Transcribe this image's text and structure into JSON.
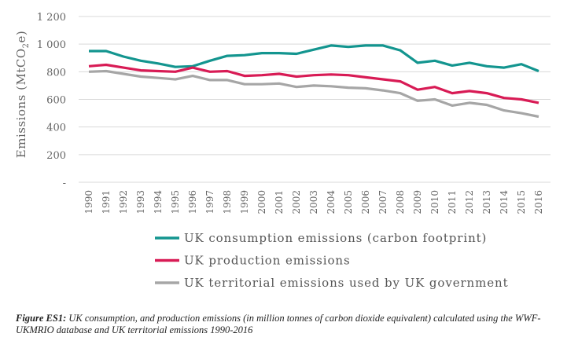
{
  "chart_data": {
    "type": "line",
    "title": "",
    "xlabel": "",
    "ylabel": "Emissions (MtCO2e)",
    "ylabel_parts": {
      "main": "Emissions (MtCO",
      "sub": "2",
      "tail": "e)"
    },
    "ylim": [
      0,
      1200
    ],
    "yticks": [
      0,
      200,
      400,
      600,
      800,
      1000,
      1200
    ],
    "ytick_labels": [
      "-",
      "200",
      "400",
      "600",
      "800",
      "1 000",
      "1 200"
    ],
    "grid": true,
    "legend_placement": "bottom",
    "x": [
      "1990",
      "1991",
      "1992",
      "1993",
      "1994",
      "1995",
      "1996",
      "1997",
      "1998",
      "1999",
      "2000",
      "2001",
      "2002",
      "2003",
      "2004",
      "2005",
      "2006",
      "2007",
      "2008",
      "2009",
      "2010",
      "2011",
      "2012",
      "2013",
      "2014",
      "2015",
      "2016"
    ],
    "series": [
      {
        "name": "UK consumption emissions (carbon footprint)",
        "color": "#13958f",
        "values": [
          950,
          950,
          910,
          880,
          860,
          835,
          840,
          880,
          915,
          920,
          935,
          935,
          930,
          960,
          990,
          980,
          990,
          990,
          955,
          865,
          880,
          845,
          865,
          840,
          830,
          855,
          805
        ]
      },
      {
        "name": "UK production emissions",
        "color": "#d81b55",
        "values": [
          840,
          850,
          830,
          810,
          805,
          800,
          830,
          800,
          805,
          770,
          775,
          785,
          765,
          775,
          780,
          775,
          760,
          745,
          730,
          670,
          690,
          645,
          660,
          645,
          610,
          600,
          575
        ]
      },
      {
        "name": "UK territorial emissions used by UK government",
        "color": "#a6a6a6",
        "values": [
          800,
          805,
          785,
          765,
          755,
          745,
          770,
          740,
          740,
          710,
          710,
          715,
          690,
          700,
          695,
          685,
          680,
          665,
          645,
          590,
          600,
          555,
          575,
          560,
          520,
          500,
          475
        ]
      }
    ]
  },
  "caption": {
    "label": "Figure ES1:",
    "text": " UK consumption, and production emissions (in million tonnes of carbon dioxide equivalent) calculated using the WWF-UKMRIO database and UK territorial emissions 1990-2016"
  }
}
